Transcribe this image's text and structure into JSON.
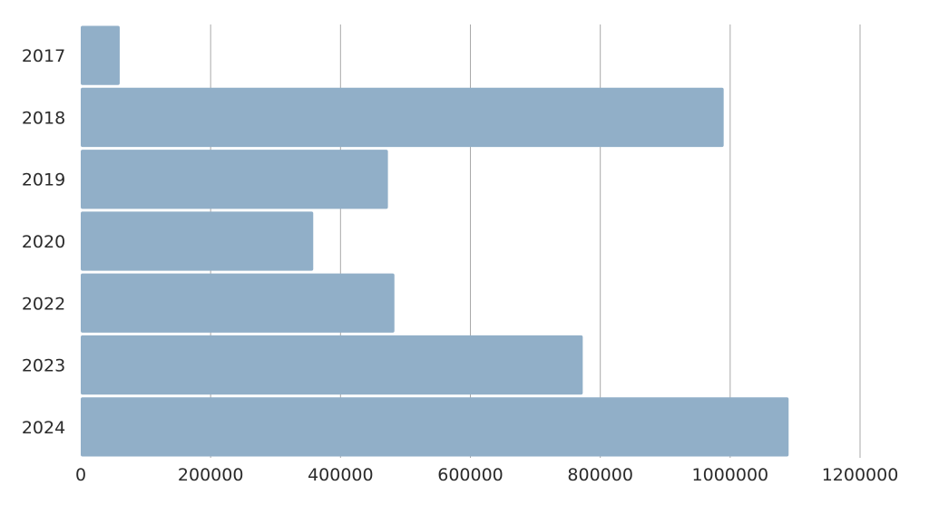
{
  "chart_data": {
    "type": "bar",
    "orientation": "horizontal",
    "categories": [
      "2017",
      "2018",
      "2019",
      "2020",
      "2022",
      "2023",
      "2024"
    ],
    "values": [
      60000,
      990000,
      473000,
      358000,
      483000,
      773000,
      1090000
    ],
    "xlim": [
      0,
      1200000
    ],
    "xticks": [
      "0",
      "200000",
      "400000",
      "600000",
      "800000",
      "1000000",
      "1200000"
    ],
    "grid": true,
    "bar_color": "#91afc8",
    "grid_color": "#a9a9a9",
    "title": "",
    "xlabel": "",
    "ylabel": ""
  }
}
